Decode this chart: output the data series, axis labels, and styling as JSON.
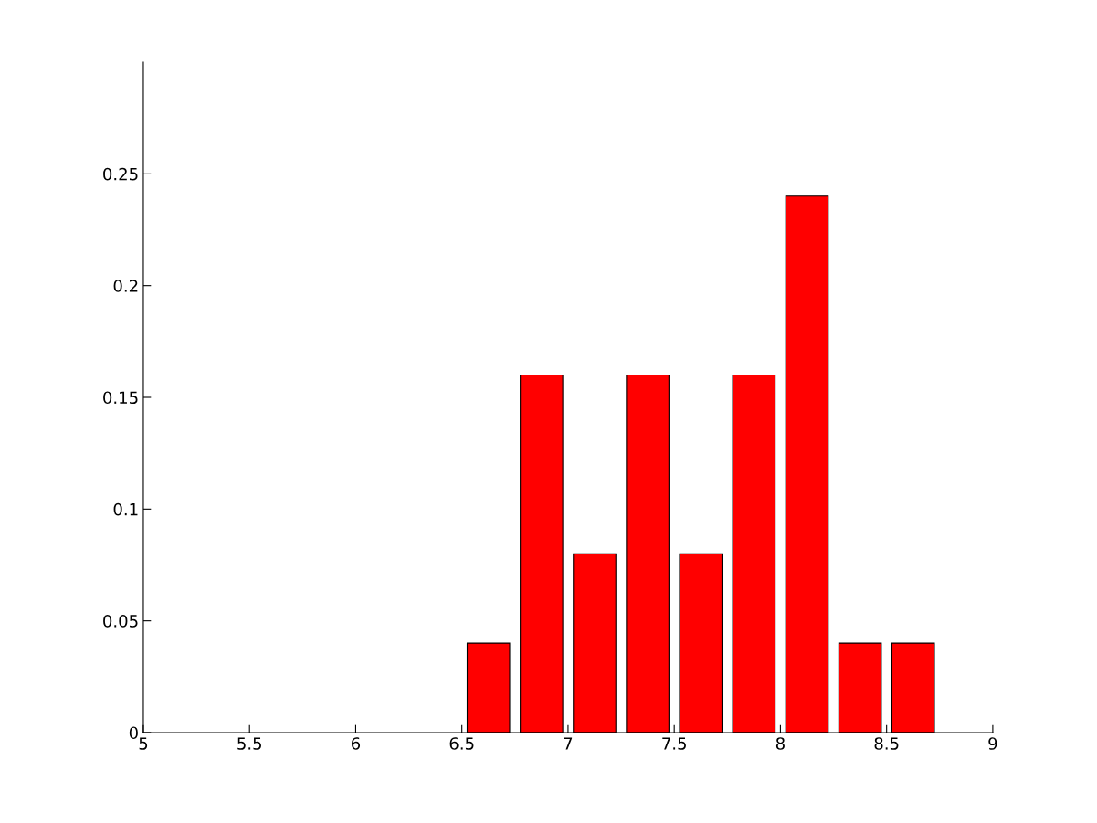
{
  "chart_data": {
    "type": "bar",
    "x": [
      6.625,
      6.875,
      7.125,
      7.375,
      7.625,
      7.875,
      8.125,
      8.375,
      8.625
    ],
    "values": [
      0.04,
      0.16,
      0.08,
      0.16,
      0.08,
      0.16,
      0.24,
      0.04,
      0.04
    ],
    "color": "#ff0000",
    "xlim": [
      5,
      9
    ],
    "xticks": [
      5,
      5.5,
      6,
      6.5,
      7,
      7.5,
      8,
      8.5,
      9
    ],
    "ylim": [
      0,
      0.3
    ],
    "yticks": [
      0,
      0.05,
      0.1,
      0.15,
      0.2,
      0.25
    ],
    "grid": false,
    "legend": false
  }
}
